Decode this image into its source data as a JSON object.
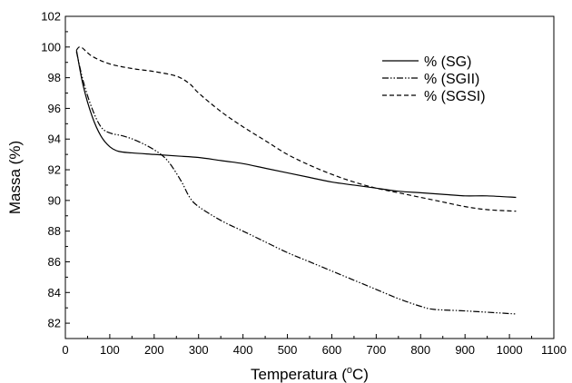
{
  "chart_data": {
    "type": "line",
    "xlabel": "Temperatura",
    "xlabel_unit_prefix": " (",
    "xlabel_unit_sup": "o",
    "xlabel_unit_suffix": "C)",
    "ylabel": "Massa (%)",
    "xlim": [
      0,
      1100
    ],
    "ylim": [
      81,
      102
    ],
    "x_ticks": [
      0,
      100,
      200,
      300,
      400,
      500,
      600,
      700,
      800,
      900,
      1000,
      1100
    ],
    "y_ticks": [
      82,
      84,
      86,
      88,
      90,
      92,
      94,
      96,
      98,
      100,
      102
    ],
    "grid": false,
    "legend_position": "top-right",
    "series": [
      {
        "name": "% (SG)",
        "style": "solid",
        "x": [
          25,
          40,
          60,
          80,
          100,
          120,
          150,
          200,
          250,
          300,
          350,
          400,
          450,
          500,
          550,
          600,
          650,
          700,
          750,
          800,
          850,
          900,
          950,
          1015
        ],
        "y": [
          99.8,
          97.5,
          95.5,
          94.2,
          93.5,
          93.2,
          93.1,
          93.0,
          92.9,
          92.8,
          92.6,
          92.4,
          92.1,
          91.8,
          91.5,
          91.2,
          91.0,
          90.8,
          90.6,
          90.5,
          90.4,
          90.3,
          90.3,
          90.2
        ]
      },
      {
        "name": "% (SGII)",
        "style": "dash-dot-dot",
        "x": [
          25,
          40,
          60,
          80,
          100,
          130,
          160,
          200,
          230,
          260,
          280,
          300,
          350,
          400,
          450,
          500,
          550,
          600,
          650,
          700,
          750,
          800,
          830,
          900,
          1015
        ],
        "y": [
          99.7,
          97.8,
          96.0,
          94.8,
          94.4,
          94.2,
          93.9,
          93.3,
          92.6,
          91.3,
          90.2,
          89.6,
          88.7,
          88.0,
          87.3,
          86.6,
          86.0,
          85.4,
          84.8,
          84.2,
          83.6,
          83.1,
          82.9,
          82.8,
          82.6
        ]
      },
      {
        "name": "% (SGSI)",
        "style": "dashed",
        "x": [
          25,
          35,
          60,
          100,
          150,
          200,
          250,
          280,
          300,
          350,
          400,
          450,
          500,
          550,
          600,
          650,
          700,
          750,
          800,
          850,
          900,
          950,
          1015
        ],
        "y": [
          99.8,
          100.0,
          99.4,
          98.9,
          98.6,
          98.4,
          98.1,
          97.6,
          97.0,
          95.8,
          94.8,
          93.9,
          93.0,
          92.3,
          91.7,
          91.2,
          90.8,
          90.5,
          90.2,
          89.9,
          89.6,
          89.4,
          89.3
        ]
      }
    ]
  }
}
